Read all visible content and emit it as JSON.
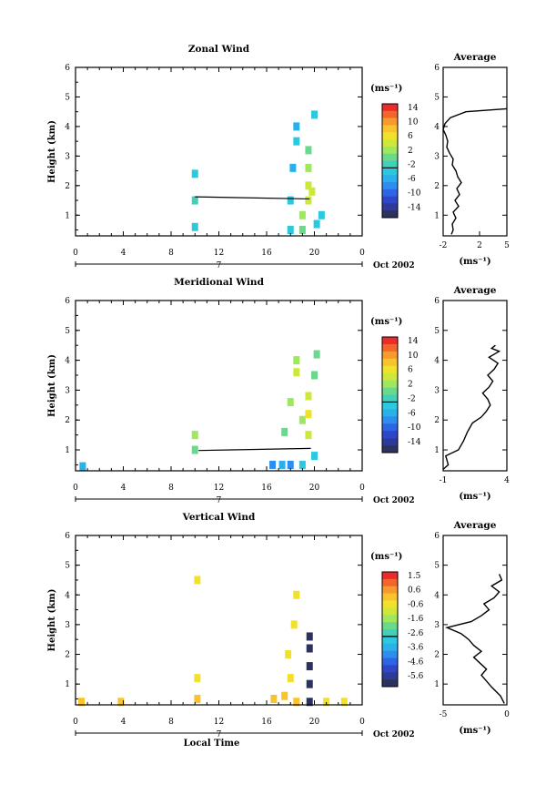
{
  "chart_data": [
    {
      "type": "heatmap",
      "id": "zonal",
      "title": "Zonal Wind",
      "ylabel": "Height (km)",
      "xticks": [
        "0",
        "4",
        "8",
        "12",
        "16",
        "20",
        "0"
      ],
      "yticks": [
        "1",
        "2",
        "3",
        "4",
        "5",
        "6"
      ],
      "xlim": [
        0,
        24
      ],
      "ylim": [
        0.3,
        6
      ],
      "date_label": "7",
      "month_label": "Oct 2002",
      "colorbar": {
        "label": "(ms⁻¹)",
        "tick_labels": [
          "14",
          "10",
          "6",
          "2",
          "-2",
          "-6",
          "-10",
          "-14"
        ],
        "colors": [
          "#ee2b2b",
          "#f5642d",
          "#f79a2d",
          "#f8c32c",
          "#f2e12c",
          "#cde83a",
          "#9ee85e",
          "#6ad98c",
          "#42d0bb",
          "#2cc8de",
          "#2ab0ec",
          "#2e8ef0",
          "#2e64e6",
          "#2d47c9",
          "#2d3a98",
          "#2b3260"
        ]
      },
      "connector_line": [
        [
          10.0,
          1.62
        ],
        [
          19.6,
          1.55
        ]
      ],
      "cells": [
        {
          "t": 10.0,
          "z": 0.6,
          "c": 9
        },
        {
          "t": 10.0,
          "z": 1.5,
          "c": 8
        },
        {
          "t": 10.0,
          "z": 2.4,
          "c": 9
        },
        {
          "t": 18.0,
          "z": 0.5,
          "c": 9
        },
        {
          "t": 18.0,
          "z": 1.5,
          "c": 9
        },
        {
          "t": 18.2,
          "z": 2.6,
          "c": 10
        },
        {
          "t": 18.5,
          "z": 3.5,
          "c": 9
        },
        {
          "t": 18.5,
          "z": 4.0,
          "c": 10
        },
        {
          "t": 19.0,
          "z": 0.5,
          "c": 7
        },
        {
          "t": 19.0,
          "z": 1.0,
          "c": 6
        },
        {
          "t": 19.5,
          "z": 1.5,
          "c": 5
        },
        {
          "t": 19.5,
          "z": 2.0,
          "c": 5
        },
        {
          "t": 19.5,
          "z": 2.6,
          "c": 6
        },
        {
          "t": 19.5,
          "z": 3.2,
          "c": 7
        },
        {
          "t": 19.8,
          "z": 1.8,
          "c": 5
        },
        {
          "t": 20.0,
          "z": 4.4,
          "c": 9
        },
        {
          "t": 20.2,
          "z": 0.7,
          "c": 9
        },
        {
          "t": 20.6,
          "z": 1.0,
          "c": 9
        }
      ],
      "profile": {
        "title": "Average",
        "xlabel": "(ms⁻¹)",
        "xticks": [
          "-2",
          "2",
          "5"
        ],
        "xlim": [
          -2,
          5
        ],
        "line": [
          [
            -1.1,
            0.35
          ],
          [
            -0.9,
            0.5
          ],
          [
            -1.0,
            0.7
          ],
          [
            -0.6,
            0.9
          ],
          [
            -0.9,
            1.1
          ],
          [
            -0.3,
            1.3
          ],
          [
            -0.7,
            1.5
          ],
          [
            -0.2,
            1.7
          ],
          [
            -0.5,
            1.9
          ],
          [
            0.0,
            2.1
          ],
          [
            -0.4,
            2.3
          ],
          [
            -0.6,
            2.5
          ],
          [
            -1.0,
            2.7
          ],
          [
            -0.9,
            2.9
          ],
          [
            -1.3,
            3.1
          ],
          [
            -1.6,
            3.3
          ],
          [
            -1.5,
            3.5
          ],
          [
            -1.7,
            3.7
          ],
          [
            -2.0,
            3.9
          ],
          [
            -1.8,
            4.1
          ],
          [
            -1.2,
            4.3
          ],
          [
            0.5,
            4.5
          ],
          [
            5.0,
            4.6
          ]
        ]
      }
    },
    {
      "type": "heatmap",
      "id": "meridional",
      "title": "Meridional Wind",
      "ylabel": "Height (km)",
      "xticks": [
        "0",
        "4",
        "8",
        "12",
        "16",
        "20",
        "0"
      ],
      "yticks": [
        "1",
        "2",
        "3",
        "4",
        "5",
        "6"
      ],
      "xlim": [
        0,
        24
      ],
      "ylim": [
        0.3,
        6
      ],
      "date_label": "7",
      "month_label": "Oct 2002",
      "colorbar": {
        "label": "(ms⁻¹)",
        "tick_labels": [
          "14",
          "10",
          "6",
          "2",
          "-2",
          "-6",
          "-10",
          "-14"
        ],
        "colors": [
          "#ee2b2b",
          "#f5642d",
          "#f79a2d",
          "#f8c32c",
          "#f2e12c",
          "#cde83a",
          "#9ee85e",
          "#6ad98c",
          "#42d0bb",
          "#2cc8de",
          "#2ab0ec",
          "#2e8ef0",
          "#2e64e6",
          "#2d47c9",
          "#2d3a98",
          "#2b3260"
        ]
      },
      "connector_line": [
        [
          10.3,
          0.98
        ],
        [
          19.7,
          1.05
        ]
      ],
      "cells": [
        {
          "t": 0.6,
          "z": 0.45,
          "c": 10
        },
        {
          "t": 10.0,
          "z": 1.0,
          "c": 7
        },
        {
          "t": 10.0,
          "z": 1.5,
          "c": 6
        },
        {
          "t": 16.5,
          "z": 0.5,
          "c": 11
        },
        {
          "t": 17.3,
          "z": 0.5,
          "c": 10
        },
        {
          "t": 18.0,
          "z": 0.5,
          "c": 11
        },
        {
          "t": 17.5,
          "z": 1.6,
          "c": 7
        },
        {
          "t": 18.0,
          "z": 2.6,
          "c": 6
        },
        {
          "t": 18.5,
          "z": 3.6,
          "c": 5
        },
        {
          "t": 18.5,
          "z": 4.0,
          "c": 6
        },
        {
          "t": 19.0,
          "z": 2.0,
          "c": 6
        },
        {
          "t": 19.0,
          "z": 0.5,
          "c": 9
        },
        {
          "t": 19.5,
          "z": 1.5,
          "c": 5
        },
        {
          "t": 19.5,
          "z": 2.2,
          "c": 4
        },
        {
          "t": 19.5,
          "z": 2.8,
          "c": 5
        },
        {
          "t": 20.0,
          "z": 0.8,
          "c": 9
        },
        {
          "t": 20.0,
          "z": 3.5,
          "c": 7
        },
        {
          "t": 20.2,
          "z": 4.2,
          "c": 7
        }
      ],
      "profile": {
        "title": "Average",
        "xlabel": "(ms⁻¹)",
        "xticks": [
          "-1",
          "4"
        ],
        "xlim": [
          -1,
          4
        ],
        "line": [
          [
            -1.0,
            0.35
          ],
          [
            -0.6,
            0.5
          ],
          [
            -0.8,
            0.8
          ],
          [
            0.2,
            1.0
          ],
          [
            0.6,
            1.3
          ],
          [
            0.9,
            1.6
          ],
          [
            1.3,
            1.9
          ],
          [
            2.0,
            2.1
          ],
          [
            2.4,
            2.3
          ],
          [
            2.7,
            2.5
          ],
          [
            2.5,
            2.7
          ],
          [
            2.1,
            2.9
          ],
          [
            2.6,
            3.1
          ],
          [
            2.9,
            3.3
          ],
          [
            2.5,
            3.5
          ],
          [
            3.0,
            3.7
          ],
          [
            3.3,
            3.9
          ],
          [
            2.6,
            4.1
          ],
          [
            3.4,
            4.3
          ],
          [
            2.8,
            4.4
          ],
          [
            3.1,
            4.5
          ]
        ]
      }
    },
    {
      "type": "heatmap",
      "id": "vertical",
      "title": "Vertical Wind",
      "ylabel": "Height (km)",
      "xlabel": "Local Time",
      "xticks": [
        "0",
        "4",
        "8",
        "12",
        "16",
        "20",
        "0"
      ],
      "yticks": [
        "1",
        "2",
        "3",
        "4",
        "5",
        "6"
      ],
      "xlim": [
        0,
        24
      ],
      "ylim": [
        0.3,
        6
      ],
      "date_label": "7",
      "month_label": "Oct 2002",
      "colorbar": {
        "label": "(ms⁻¹)",
        "tick_labels": [
          "1.5",
          "0.6",
          "-0.6",
          "-1.6",
          "-2.6",
          "-3.6",
          "-4.6",
          "-5.6"
        ],
        "colors": [
          "#ee2b2b",
          "#f5642d",
          "#f79a2d",
          "#f8c32c",
          "#f2e12c",
          "#cde83a",
          "#9ee85e",
          "#6ad98c",
          "#42d0bb",
          "#2cc8de",
          "#2ab0ec",
          "#2e8ef0",
          "#2e64e6",
          "#2d47c9",
          "#2d3a98",
          "#2b3260"
        ]
      },
      "cells": [
        {
          "t": 0.5,
          "z": 0.4,
          "c": 3
        },
        {
          "t": 3.8,
          "z": 0.4,
          "c": 3
        },
        {
          "t": 10.2,
          "z": 0.5,
          "c": 3
        },
        {
          "t": 10.2,
          "z": 1.2,
          "c": 4
        },
        {
          "t": 10.2,
          "z": 4.5,
          "c": 4
        },
        {
          "t": 16.6,
          "z": 0.5,
          "c": 3
        },
        {
          "t": 17.5,
          "z": 0.6,
          "c": 3
        },
        {
          "t": 18.0,
          "z": 1.2,
          "c": 4
        },
        {
          "t": 17.8,
          "z": 2.0,
          "c": 4
        },
        {
          "t": 18.3,
          "z": 3.0,
          "c": 4
        },
        {
          "t": 18.5,
          "z": 4.0,
          "c": 4
        },
        {
          "t": 18.5,
          "z": 0.4,
          "c": 3
        },
        {
          "t": 19.6,
          "z": 0.4,
          "c": 15
        },
        {
          "t": 19.6,
          "z": 1.0,
          "c": 15
        },
        {
          "t": 19.6,
          "z": 1.6,
          "c": 15
        },
        {
          "t": 19.6,
          "z": 2.2,
          "c": 15
        },
        {
          "t": 19.6,
          "z": 2.6,
          "c": 15
        },
        {
          "t": 21.0,
          "z": 0.4,
          "c": 4
        },
        {
          "t": 22.5,
          "z": 0.4,
          "c": 4
        }
      ],
      "profile": {
        "title": "Average",
        "xlabel": "(ms⁻¹)",
        "xticks": [
          "-5",
          "0"
        ],
        "xlim": [
          -5,
          0
        ],
        "line": [
          [
            -0.2,
            0.35
          ],
          [
            -0.5,
            0.6
          ],
          [
            -1.2,
            0.9
          ],
          [
            -1.6,
            1.1
          ],
          [
            -2.0,
            1.3
          ],
          [
            -1.6,
            1.5
          ],
          [
            -2.1,
            1.7
          ],
          [
            -2.6,
            1.9
          ],
          [
            -2.0,
            2.1
          ],
          [
            -2.6,
            2.3
          ],
          [
            -3.0,
            2.5
          ],
          [
            -3.6,
            2.7
          ],
          [
            -4.7,
            2.9
          ],
          [
            -2.8,
            3.1
          ],
          [
            -2.0,
            3.3
          ],
          [
            -1.4,
            3.5
          ],
          [
            -1.8,
            3.7
          ],
          [
            -1.0,
            3.9
          ],
          [
            -0.6,
            4.1
          ],
          [
            -1.2,
            4.3
          ],
          [
            -0.4,
            4.5
          ],
          [
            -0.6,
            4.7
          ]
        ]
      }
    }
  ]
}
